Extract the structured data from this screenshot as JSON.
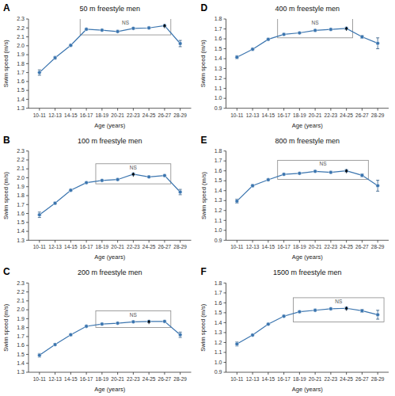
{
  "chart_data": [
    {
      "type": "line",
      "title": "50 m freestyle men",
      "x_label": "Age (years)",
      "y_label": "Swim speed (m/s)",
      "categories": [
        "10-11",
        "12-13",
        "14-15",
        "16-17",
        "18-19",
        "20-21",
        "22-23",
        "24-25",
        "26-27",
        "28-29"
      ],
      "values": [
        1.7,
        1.865,
        2.005,
        2.185,
        2.175,
        2.16,
        2.195,
        2.2,
        2.225,
        2.025
      ],
      "errors": [
        0.03,
        0.015,
        0.01,
        0.01,
        0.008,
        0.008,
        0.01,
        0.01,
        0.012,
        0.035
      ],
      "ylim": [
        1.3,
        2.3
      ],
      "yticks": [
        1.3,
        1.4,
        1.5,
        1.6,
        1.7,
        1.8,
        1.9,
        {
          "value": 2.0,
          "label": "2.0"
        },
        2.1,
        2.2,
        2.3
      ],
      "grid": false,
      "marker": "circle",
      "line_style": "solid",
      "annotations": [
        {
          "type": "panel_label",
          "text": "A"
        },
        {
          "type": "box",
          "text": "NS",
          "from": "16-17",
          "to": "26-27"
        },
        {
          "type": "arrow",
          "at": "26-27"
        }
      ]
    },
    {
      "type": "line",
      "title": "100 m freestyle men",
      "x_label": "Age (years)",
      "y_label": "Swim speed (m/s)",
      "categories": [
        "10-11",
        "12-13",
        "14-15",
        "16-17",
        "18-19",
        "20-21",
        "22-23",
        "24-25",
        "26-27",
        "28-29"
      ],
      "values": [
        1.585,
        1.715,
        1.86,
        1.945,
        1.97,
        1.98,
        2.04,
        2.01,
        2.025,
        1.84
      ],
      "errors": [
        0.03,
        0.012,
        0.01,
        0.008,
        0.008,
        0.008,
        0.012,
        0.01,
        0.01,
        0.03
      ],
      "ylim": [
        1.3,
        2.3
      ],
      "yticks": [
        1.3,
        1.4,
        1.5,
        1.6,
        1.7,
        1.8,
        1.9,
        {
          "value": 2.0,
          "label": "2.0"
        },
        2.1,
        2.2,
        2.3
      ],
      "grid": false,
      "marker": "circle",
      "line_style": "solid",
      "annotations": [
        {
          "type": "panel_label",
          "text": "B"
        },
        {
          "type": "box",
          "text": "NS",
          "from": "18-19",
          "to": "26-27"
        },
        {
          "type": "arrow",
          "at": "22-23"
        }
      ]
    },
    {
      "type": "line",
      "title": "200 m freestyle men",
      "x_label": "Age (years)",
      "y_label": "Swim speed (m/s)",
      "categories": [
        "10-11",
        "12-13",
        "14-15",
        "16-17",
        "18-19",
        "20-21",
        "22-23",
        "24-25",
        "26-27",
        "28-29"
      ],
      "values": [
        1.49,
        1.61,
        1.72,
        1.815,
        1.84,
        1.85,
        1.865,
        1.87,
        1.87,
        1.72
      ],
      "errors": [
        0.02,
        0.012,
        0.01,
        0.008,
        0.008,
        0.008,
        0.01,
        0.01,
        0.012,
        0.03
      ],
      "ylim": [
        1.3,
        2.3
      ],
      "yticks": [
        1.3,
        1.4,
        1.5,
        1.6,
        1.7,
        1.8,
        1.9,
        {
          "value": 2.0,
          "label": "2.0"
        },
        2.1,
        2.2,
        2.3
      ],
      "grid": false,
      "marker": "circle",
      "line_style": "solid",
      "annotations": [
        {
          "type": "panel_label",
          "text": "C"
        },
        {
          "type": "box",
          "text": "NS",
          "from": "18-19",
          "to": "26-27"
        },
        {
          "type": "arrow",
          "at": "24-25"
        }
      ]
    },
    {
      "type": "line",
      "title": "400 m freestyle men",
      "x_label": "Age (years)",
      "y_label": "Swim speed (m/s)",
      "categories": [
        "10-11",
        "12-13",
        "14-15",
        "16-17",
        "18-19",
        "20-21",
        "22-23",
        "24-25",
        "26-27",
        "28-29"
      ],
      "values": [
        1.415,
        1.495,
        1.595,
        1.645,
        1.66,
        1.685,
        1.695,
        1.705,
        1.62,
        1.555
      ],
      "errors": [
        0.015,
        0.012,
        0.01,
        0.008,
        0.008,
        0.008,
        0.01,
        0.012,
        0.015,
        0.055
      ],
      "ylim": [
        0.9,
        1.8
      ],
      "yticks": [
        0.9,
        {
          "value": 1.0,
          "label": "1.0"
        },
        1.1,
        1.2,
        1.3,
        1.4,
        1.5,
        1.6,
        1.7,
        1.8
      ],
      "grid": false,
      "marker": "circle",
      "line_style": "solid",
      "annotations": [
        {
          "type": "panel_label",
          "text": "D"
        },
        {
          "type": "box",
          "text": "NS",
          "from": "16-17",
          "to": "24-25"
        },
        {
          "type": "arrow",
          "at": "24-25"
        }
      ]
    },
    {
      "type": "line",
      "title": "800 m freestyle men",
      "x_label": "Age (years)",
      "y_label": "Swim speed (m/s)",
      "categories": [
        "10-11",
        "12-13",
        "14-15",
        "16-17",
        "18-19",
        "20-21",
        "22-23",
        "24-25",
        "26-27",
        "28-29"
      ],
      "values": [
        1.295,
        1.45,
        1.51,
        1.565,
        1.575,
        1.595,
        1.585,
        1.6,
        1.555,
        1.45
      ],
      "errors": [
        0.02,
        0.012,
        0.01,
        0.008,
        0.008,
        0.008,
        0.01,
        0.012,
        0.015,
        0.055
      ],
      "ylim": [
        0.9,
        1.8
      ],
      "yticks": [
        0.9,
        {
          "value": 1.0,
          "label": "1.0"
        },
        1.1,
        1.2,
        1.3,
        1.4,
        1.5,
        1.6,
        1.7,
        1.8
      ],
      "grid": false,
      "marker": "circle",
      "line_style": "solid",
      "annotations": [
        {
          "type": "panel_label",
          "text": "E"
        },
        {
          "type": "box",
          "text": "NS",
          "from": "16-17",
          "to": "26-27"
        },
        {
          "type": "arrow",
          "at": "24-25"
        }
      ]
    },
    {
      "type": "line",
      "title": "1500 m freestyle men",
      "x_label": "Age (years)",
      "y_label": "Swim speed (m/s)",
      "categories": [
        "10-11",
        "12-13",
        "14-15",
        "16-17",
        "18-19",
        "20-21",
        "22-23",
        "24-25",
        "26-27",
        "28-29"
      ],
      "values": [
        1.185,
        1.275,
        1.385,
        1.465,
        1.51,
        1.525,
        1.54,
        1.545,
        1.52,
        1.48
      ],
      "errors": [
        0.02,
        0.012,
        0.01,
        0.008,
        0.008,
        0.008,
        0.008,
        0.012,
        0.015,
        0.045
      ],
      "ylim": [
        0.9,
        1.8
      ],
      "yticks": [
        0.9,
        {
          "value": 1.0,
          "label": "1.0"
        },
        1.1,
        1.2,
        1.3,
        1.4,
        1.5,
        1.6,
        1.7,
        1.8
      ],
      "grid": false,
      "marker": "circle",
      "line_style": "solid",
      "annotations": [
        {
          "type": "panel_label",
          "text": "F"
        },
        {
          "type": "box",
          "text": "NS",
          "from": "18-19",
          "to": "28-29"
        },
        {
          "type": "arrow",
          "at": "24-25"
        }
      ]
    }
  ]
}
